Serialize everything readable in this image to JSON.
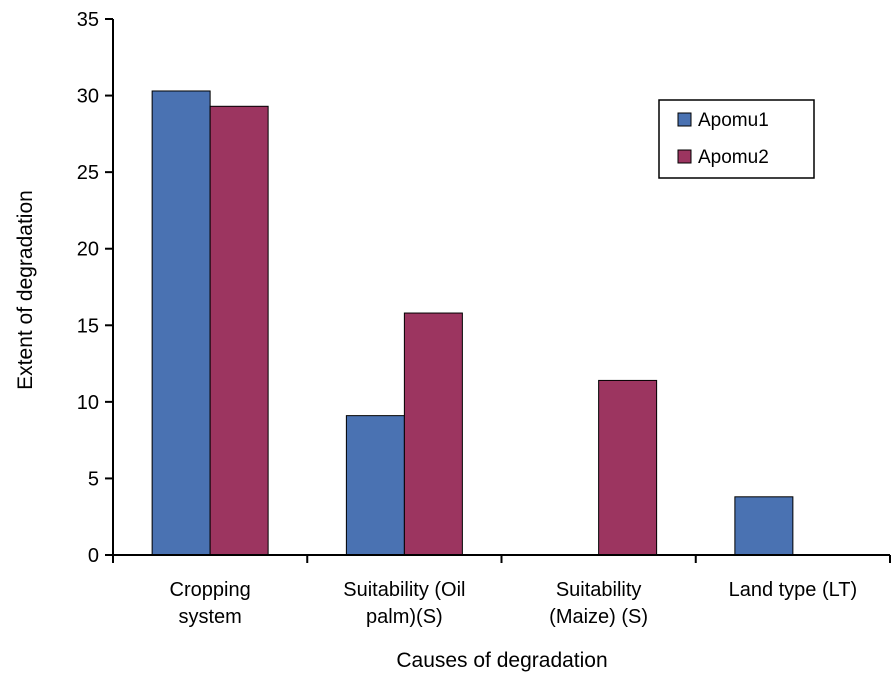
{
  "chart_data": {
    "type": "bar",
    "title": "",
    "xlabel": "Causes of degradation",
    "ylabel": "Extent of degradation",
    "ylim": [
      0,
      35
    ],
    "yticks": [
      0,
      5,
      10,
      15,
      20,
      25,
      30,
      35
    ],
    "categories": [
      [
        "Cropping",
        "system"
      ],
      [
        "Suitability (Oil",
        "palm)(S)"
      ],
      [
        "Suitability",
        "(Maize) (S)"
      ],
      [
        "Land type (LT)"
      ]
    ],
    "series": [
      {
        "name": "Apomu1",
        "color": "#4a72b2",
        "values": [
          30.3,
          9.1,
          0,
          3.8
        ]
      },
      {
        "name": "Apomu2",
        "color": "#9c3560",
        "values": [
          29.3,
          15.8,
          11.4,
          0
        ]
      }
    ],
    "legend_position": "top-right",
    "grid": false
  }
}
